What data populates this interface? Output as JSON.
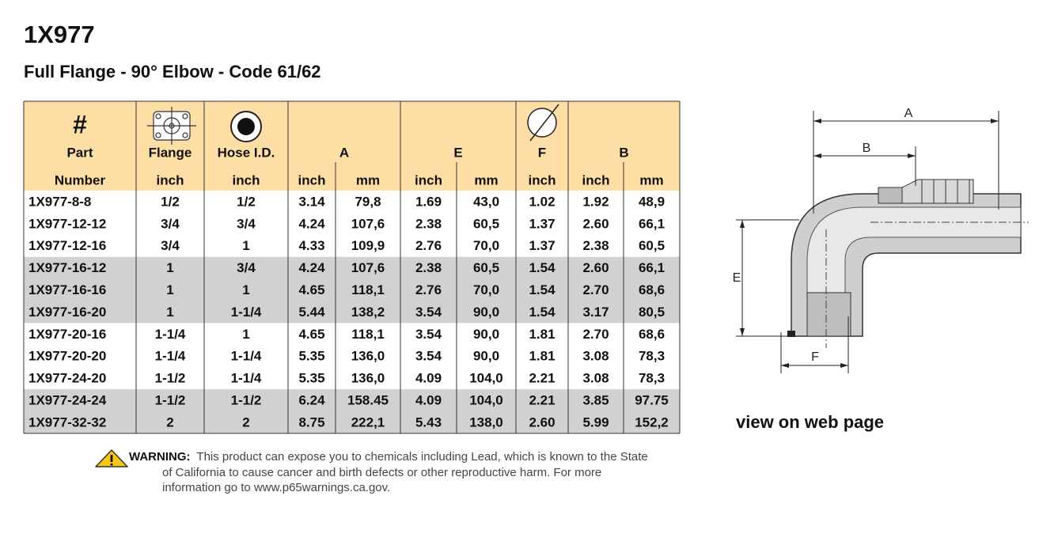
{
  "header": {
    "title": "1X977",
    "subtitle": "Full Flange - 90° Elbow - Code 61/62"
  },
  "table": {
    "symbol": "#",
    "labels": [
      "Part",
      "Flange",
      "Hose I.D.",
      "A",
      "E",
      "F",
      "B"
    ],
    "units": [
      "Number",
      "inch",
      "inch",
      "inch",
      "mm",
      "inch",
      "mm",
      "inch",
      "inch",
      "mm"
    ],
    "shaded_rows": [
      3,
      4,
      5,
      9,
      10
    ],
    "rows": [
      [
        "1X977-8-8",
        "1/2",
        "1/2",
        "3.14",
        "79,8",
        "1.69",
        "43,0",
        "1.02",
        "1.92",
        "48,9"
      ],
      [
        "1X977-12-12",
        "3/4",
        "3/4",
        "4.24",
        "107,6",
        "2.38",
        "60,5",
        "1.37",
        "2.60",
        "66,1"
      ],
      [
        "1X977-12-16",
        "3/4",
        "1",
        "4.33",
        "109,9",
        "2.76",
        "70,0",
        "1.37",
        "2.38",
        "60,5"
      ],
      [
        "1X977-16-12",
        "1",
        "3/4",
        "4.24",
        "107,6",
        "2.38",
        "60,5",
        "1.54",
        "2.60",
        "66,1"
      ],
      [
        "1X977-16-16",
        "1",
        "1",
        "4.65",
        "118,1",
        "2.76",
        "70,0",
        "1.54",
        "2.70",
        "68,6"
      ],
      [
        "1X977-16-20",
        "1",
        "1-1/4",
        "5.44",
        "138,2",
        "3.54",
        "90,0",
        "1.54",
        "3.17",
        "80,5"
      ],
      [
        "1X977-20-16",
        "1-1/4",
        "1",
        "4.65",
        "118,1",
        "3.54",
        "90,0",
        "1.81",
        "2.70",
        "68,6"
      ],
      [
        "1X977-20-20",
        "1-1/4",
        "1-1/4",
        "5.35",
        "136,0",
        "3.54",
        "90,0",
        "1.81",
        "3.08",
        "78,3"
      ],
      [
        "1X977-24-20",
        "1-1/2",
        "1-1/4",
        "5.35",
        "136,0",
        "4.09",
        "104,0",
        "2.21",
        "3.08",
        "78,3"
      ],
      [
        "1X977-24-24",
        "1-1/2",
        "1-1/2",
        "6.24",
        "158.45",
        "4.09",
        "104,0",
        "2.21",
        "3.85",
        "97.75"
      ],
      [
        "1X977-32-32",
        "2",
        "2",
        "8.75",
        "222,1",
        "5.43",
        "138,0",
        "2.60",
        "5.99",
        "152,2"
      ]
    ]
  },
  "warning": {
    "label": "WARNING:",
    "lines": [
      "This product can expose you to chemicals including Lead, which is known to the State",
      "of California to cause cancer and birth defects or other reproductive harm.  For more",
      "information go to www.p65warnings.ca.gov."
    ]
  },
  "diagram": {
    "labels": {
      "a": "A",
      "b": "B",
      "e": "E",
      "f": "F"
    }
  },
  "link": "view on web page"
}
